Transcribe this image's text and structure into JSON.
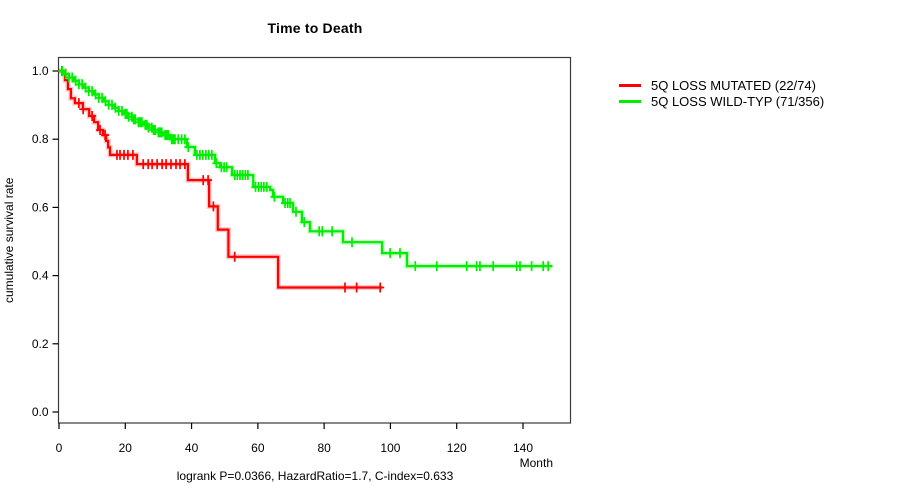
{
  "chart_data": {
    "type": "line",
    "subtype": "kaplan-meier-step",
    "title": "Time to Death",
    "xlabel": "Month",
    "ylabel": "cumulative survival rate",
    "annotation": "logrank P=0.0366, HazardRatio=1.7, C-index=0.633",
    "x_ticks": [
      0,
      20,
      40,
      60,
      80,
      100,
      120,
      140
    ],
    "y_ticks": [
      0.0,
      0.2,
      0.4,
      0.6,
      0.8,
      1.0
    ],
    "xlim": [
      0,
      154
    ],
    "ylim": [
      0,
      1.04
    ],
    "grid": false,
    "legend_position": "right-outside",
    "series": [
      {
        "name": "5Q LOSS MUTATED (22/74)",
        "color": "#ff0000",
        "steps": [
          [
            0,
            1.0
          ],
          [
            1.8,
            0.973
          ],
          [
            2.7,
            0.947
          ],
          [
            3.6,
            0.92
          ],
          [
            4.8,
            0.906
          ],
          [
            7.2,
            0.888
          ],
          [
            9.1,
            0.868
          ],
          [
            10.6,
            0.85
          ],
          [
            11.8,
            0.827
          ],
          [
            13.3,
            0.812
          ],
          [
            14.2,
            0.795
          ],
          [
            14.8,
            0.776
          ],
          [
            15.4,
            0.754
          ],
          [
            23.5,
            0.727
          ],
          [
            38.9,
            0.68
          ],
          [
            45.3,
            0.603
          ],
          [
            47.9,
            0.535
          ],
          [
            51.1,
            0.455
          ],
          [
            66.1,
            0.365
          ]
        ],
        "end_month": 97.5,
        "censor_months": [
          0.9,
          6,
          7.3,
          10,
          12.4,
          13.9,
          17.5,
          18.4,
          19.6,
          20.8,
          22.3,
          25.4,
          26.9,
          28.1,
          29.6,
          31.1,
          32.3,
          33.8,
          35.3,
          36.5,
          38,
          43.5,
          45,
          46.6,
          53,
          86.3,
          89.8,
          96.9
        ]
      },
      {
        "name": "5Q LOSS WILD-TYP (71/356)",
        "color": "#00ee00",
        "steps": [
          [
            0,
            1.0
          ],
          [
            1.5,
            0.991
          ],
          [
            3,
            0.981
          ],
          [
            4.5,
            0.971
          ],
          [
            6,
            0.961
          ],
          [
            7.5,
            0.951
          ],
          [
            9,
            0.941
          ],
          [
            10.5,
            0.931
          ],
          [
            12,
            0.921
          ],
          [
            13.5,
            0.911
          ],
          [
            15,
            0.901
          ],
          [
            16.5,
            0.892
          ],
          [
            18,
            0.883
          ],
          [
            19.5,
            0.874
          ],
          [
            21,
            0.866
          ],
          [
            22.5,
            0.858
          ],
          [
            24,
            0.85
          ],
          [
            25.5,
            0.842
          ],
          [
            27,
            0.834
          ],
          [
            28.5,
            0.827
          ],
          [
            30,
            0.82
          ],
          [
            31.5,
            0.812
          ],
          [
            33.5,
            0.8
          ],
          [
            38.6,
            0.777
          ],
          [
            41,
            0.754
          ],
          [
            47.1,
            0.73
          ],
          [
            48.6,
            0.718
          ],
          [
            52.2,
            0.695
          ],
          [
            58.6,
            0.66
          ],
          [
            63.7,
            0.651
          ],
          [
            64.6,
            0.631
          ],
          [
            67.6,
            0.613
          ],
          [
            70.6,
            0.587
          ],
          [
            73.3,
            0.557
          ],
          [
            75.7,
            0.53
          ],
          [
            85.7,
            0.498
          ],
          [
            97.5,
            0.466
          ],
          [
            105,
            0.428
          ]
        ],
        "end_month": 148.9,
        "censor_months": [
          1,
          2,
          3,
          4,
          5,
          6,
          7,
          8,
          9,
          10,
          11,
          12,
          13,
          14,
          15,
          16,
          17,
          18,
          19,
          20,
          20.5,
          21,
          22,
          22.5,
          23,
          24,
          24.5,
          25,
          26,
          26.5,
          27,
          28,
          28.5,
          29,
          30,
          30.5,
          31,
          32,
          32.5,
          33,
          34,
          34.5,
          35,
          36,
          37,
          38,
          39,
          41.6,
          42.5,
          43.4,
          44.3,
          45.2,
          46.1,
          47.5,
          49,
          49.8,
          50.6,
          53,
          53.8,
          54.6,
          55.4,
          56.2,
          57,
          59.3,
          60.2,
          61,
          61.8,
          62.7,
          65,
          68.2,
          69,
          69.7,
          71.5,
          74,
          78.5,
          79.4,
          82.4,
          88.4,
          99.9,
          102.9,
          107.5,
          114,
          123,
          126,
          127,
          131,
          138.1,
          139.1,
          142.6,
          146.1,
          147.6
        ]
      }
    ]
  }
}
